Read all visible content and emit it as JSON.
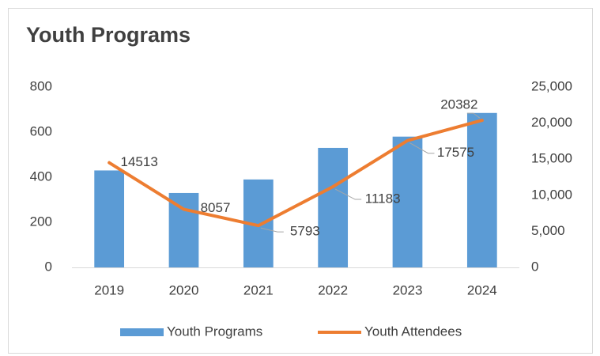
{
  "chart_data": {
    "type": "bar-line",
    "title": "Youth Programs",
    "categories": [
      "2019",
      "2020",
      "2021",
      "2022",
      "2023",
      "2024"
    ],
    "series": [
      {
        "name": "Youth Programs",
        "type": "bar",
        "color": "#5b9bd5",
        "values": [
          430,
          330,
          390,
          530,
          580,
          685
        ]
      },
      {
        "name": "Youth Attendees",
        "type": "line",
        "axis": "y2",
        "color": "#ed7d31",
        "values": [
          14513,
          8057,
          5793,
          11183,
          17575,
          20382
        ]
      }
    ],
    "ylim": [
      0,
      800
    ],
    "yticks": [
      0,
      200,
      400,
      600,
      800
    ],
    "y2lim": [
      0,
      25000
    ],
    "y2ticks": [
      0,
      {
        "value": 5000,
        "label": "5,000"
      },
      {
        "value": 10000,
        "label": "10,000"
      },
      {
        "value": 15000,
        "label": "15,000"
      },
      {
        "value": 20000,
        "label": "20,000"
      },
      {
        "value": 25000,
        "label": "25,000"
      }
    ],
    "grid": false,
    "legend": "bottom"
  }
}
